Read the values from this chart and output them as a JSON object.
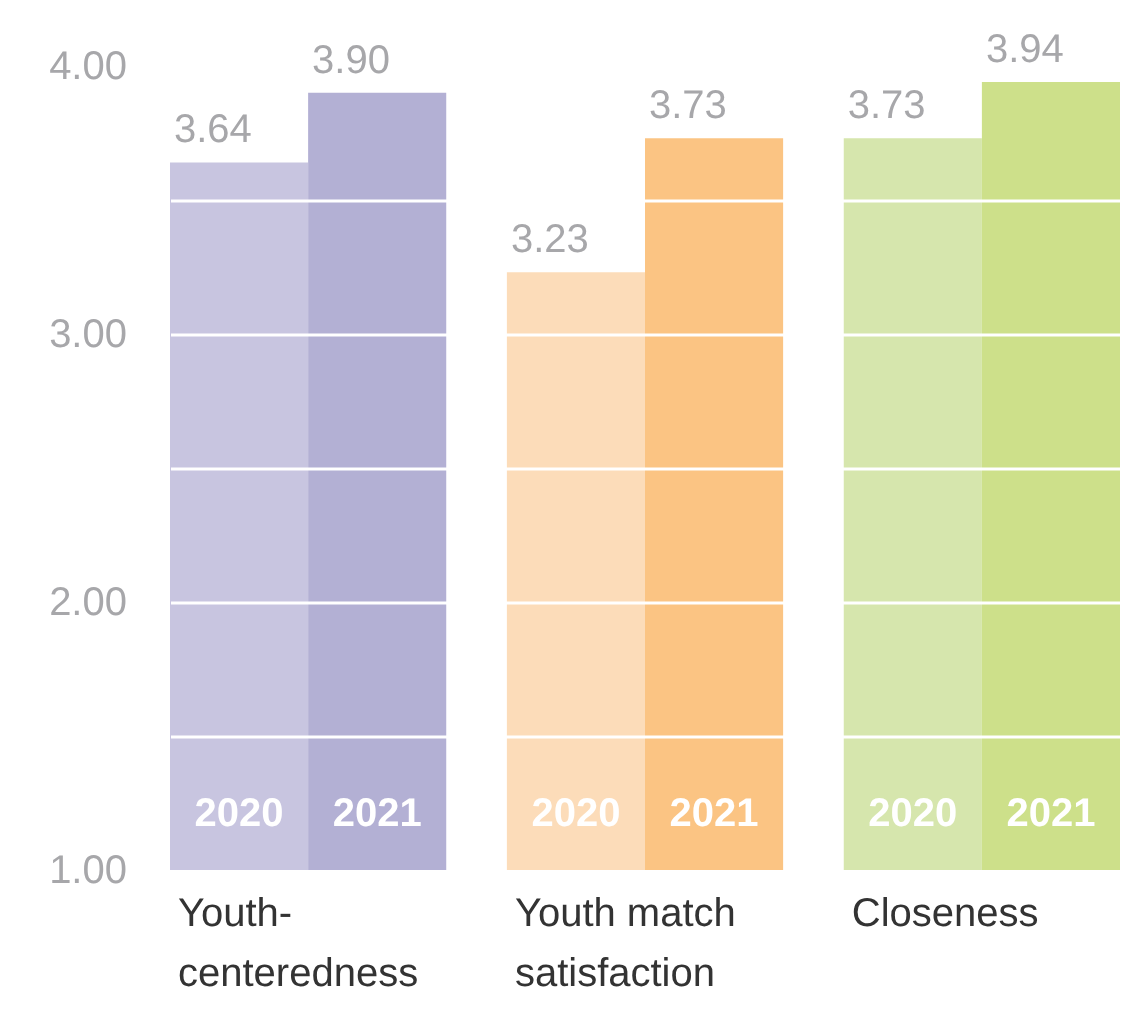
{
  "chart_data": {
    "type": "bar",
    "categories": [
      "Youth-centeredness",
      "Youth match satisfaction",
      "Closeness"
    ],
    "series": [
      {
        "name": "2020",
        "colors": [
          "#c8c5e0",
          "#fcdcb9",
          "#d6e6ad"
        ],
        "values": [
          3.64,
          3.23,
          3.73
        ],
        "value_labels": [
          "3.64",
          "3.23",
          "3.73"
        ]
      },
      {
        "name": "2021",
        "colors": [
          "#b3b0d4",
          "#fbc483",
          "#cde08a"
        ],
        "values": [
          3.9,
          3.73,
          3.94
        ],
        "value_labels": [
          "3.90",
          "3.73",
          "3.94"
        ]
      }
    ],
    "ylim": [
      1,
      4
    ],
    "yticks": [
      "1.00",
      {
        "value": 1.5,
        "label": null
      },
      {
        "value": 2,
        "label": "2.00"
      },
      {
        "value": 2.5,
        "label": null
      },
      {
        "value": 3,
        "label": "3.00"
      },
      {
        "value": 3.5,
        "label": null
      },
      {
        "value": 4,
        "label": "4.00"
      }
    ],
    "grid": "y"
  }
}
